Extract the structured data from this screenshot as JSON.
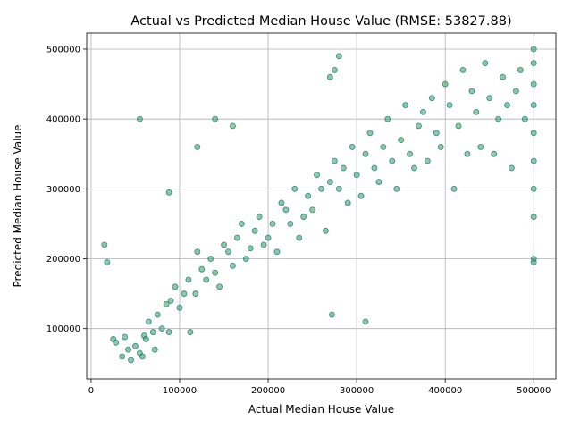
{
  "chart_data": {
    "type": "scatter",
    "title": "Actual vs Predicted Median House Value (RMSE: 53827.88)",
    "xlabel": "Actual Median House Value",
    "ylabel": "Predicted Median House Value",
    "xlim": [
      -5000,
      525000
    ],
    "ylim": [
      28000,
      523000
    ],
    "xticks": [
      0,
      100000,
      200000,
      300000,
      400000,
      500000
    ],
    "yticks": [
      100000,
      200000,
      300000,
      400000,
      500000
    ],
    "xtick_labels": [
      "0",
      "100000",
      "200000",
      "300000",
      "400000",
      "500000"
    ],
    "ytick_labels": [
      "100000",
      "200000",
      "300000",
      "400000",
      "500000"
    ],
    "grid": true,
    "marker_face_color": "#2ca05a",
    "marker_edge_color": "#1f6f6f",
    "series": [
      {
        "x": [
          15000,
          18000,
          25000,
          28000,
          35000,
          38000,
          42000,
          45000,
          50000,
          55000,
          58000,
          60000,
          62000,
          65000,
          70000,
          72000,
          75000,
          80000,
          85000,
          88000,
          90000,
          95000,
          100000,
          105000,
          110000,
          112000,
          118000,
          120000,
          125000,
          130000,
          135000,
          140000,
          145000,
          150000,
          155000,
          160000,
          165000,
          170000,
          175000,
          180000,
          185000,
          190000,
          195000,
          200000,
          205000,
          210000,
          215000,
          220000,
          225000,
          230000,
          235000,
          240000,
          245000,
          250000,
          255000,
          260000,
          265000,
          270000,
          275000,
          280000,
          285000,
          290000,
          295000,
          300000,
          305000,
          310000,
          315000,
          320000,
          325000,
          330000,
          335000,
          340000,
          345000,
          350000,
          355000,
          360000,
          365000,
          370000,
          375000,
          380000,
          385000,
          390000,
          395000,
          400000,
          405000,
          410000,
          415000,
          420000,
          425000,
          430000,
          435000,
          440000,
          445000,
          450000,
          455000,
          460000,
          465000,
          470000,
          475000,
          480000,
          485000,
          490000,
          500000,
          500000,
          500000,
          500000,
          500000,
          500000,
          500000,
          500000,
          500000,
          500000,
          55000,
          88000,
          140000,
          270000,
          275000,
          280000,
          272000,
          310000,
          120000,
          160000
        ],
        "y": [
          220000,
          195000,
          85000,
          80000,
          60000,
          88000,
          70000,
          55000,
          75000,
          65000,
          60000,
          90000,
          85000,
          110000,
          95000,
          70000,
          120000,
          100000,
          135000,
          95000,
          140000,
          160000,
          130000,
          150000,
          170000,
          95000,
          150000,
          210000,
          185000,
          170000,
          200000,
          180000,
          160000,
          220000,
          210000,
          190000,
          230000,
          250000,
          200000,
          215000,
          240000,
          260000,
          220000,
          230000,
          250000,
          210000,
          280000,
          270000,
          250000,
          300000,
          230000,
          260000,
          290000,
          270000,
          320000,
          300000,
          240000,
          310000,
          340000,
          300000,
          330000,
          280000,
          360000,
          320000,
          290000,
          350000,
          380000,
          330000,
          310000,
          360000,
          400000,
          340000,
          300000,
          370000,
          420000,
          350000,
          330000,
          390000,
          410000,
          340000,
          430000,
          380000,
          360000,
          450000,
          420000,
          300000,
          390000,
          470000,
          350000,
          440000,
          410000,
          360000,
          480000,
          430000,
          350000,
          400000,
          460000,
          420000,
          330000,
          440000,
          470000,
          400000,
          200000,
          260000,
          300000,
          340000,
          380000,
          420000,
          450000,
          480000,
          500000,
          195000,
          400000,
          295000,
          400000,
          460000,
          470000,
          490000,
          120000,
          110000,
          360000,
          390000
        ]
      }
    ]
  }
}
